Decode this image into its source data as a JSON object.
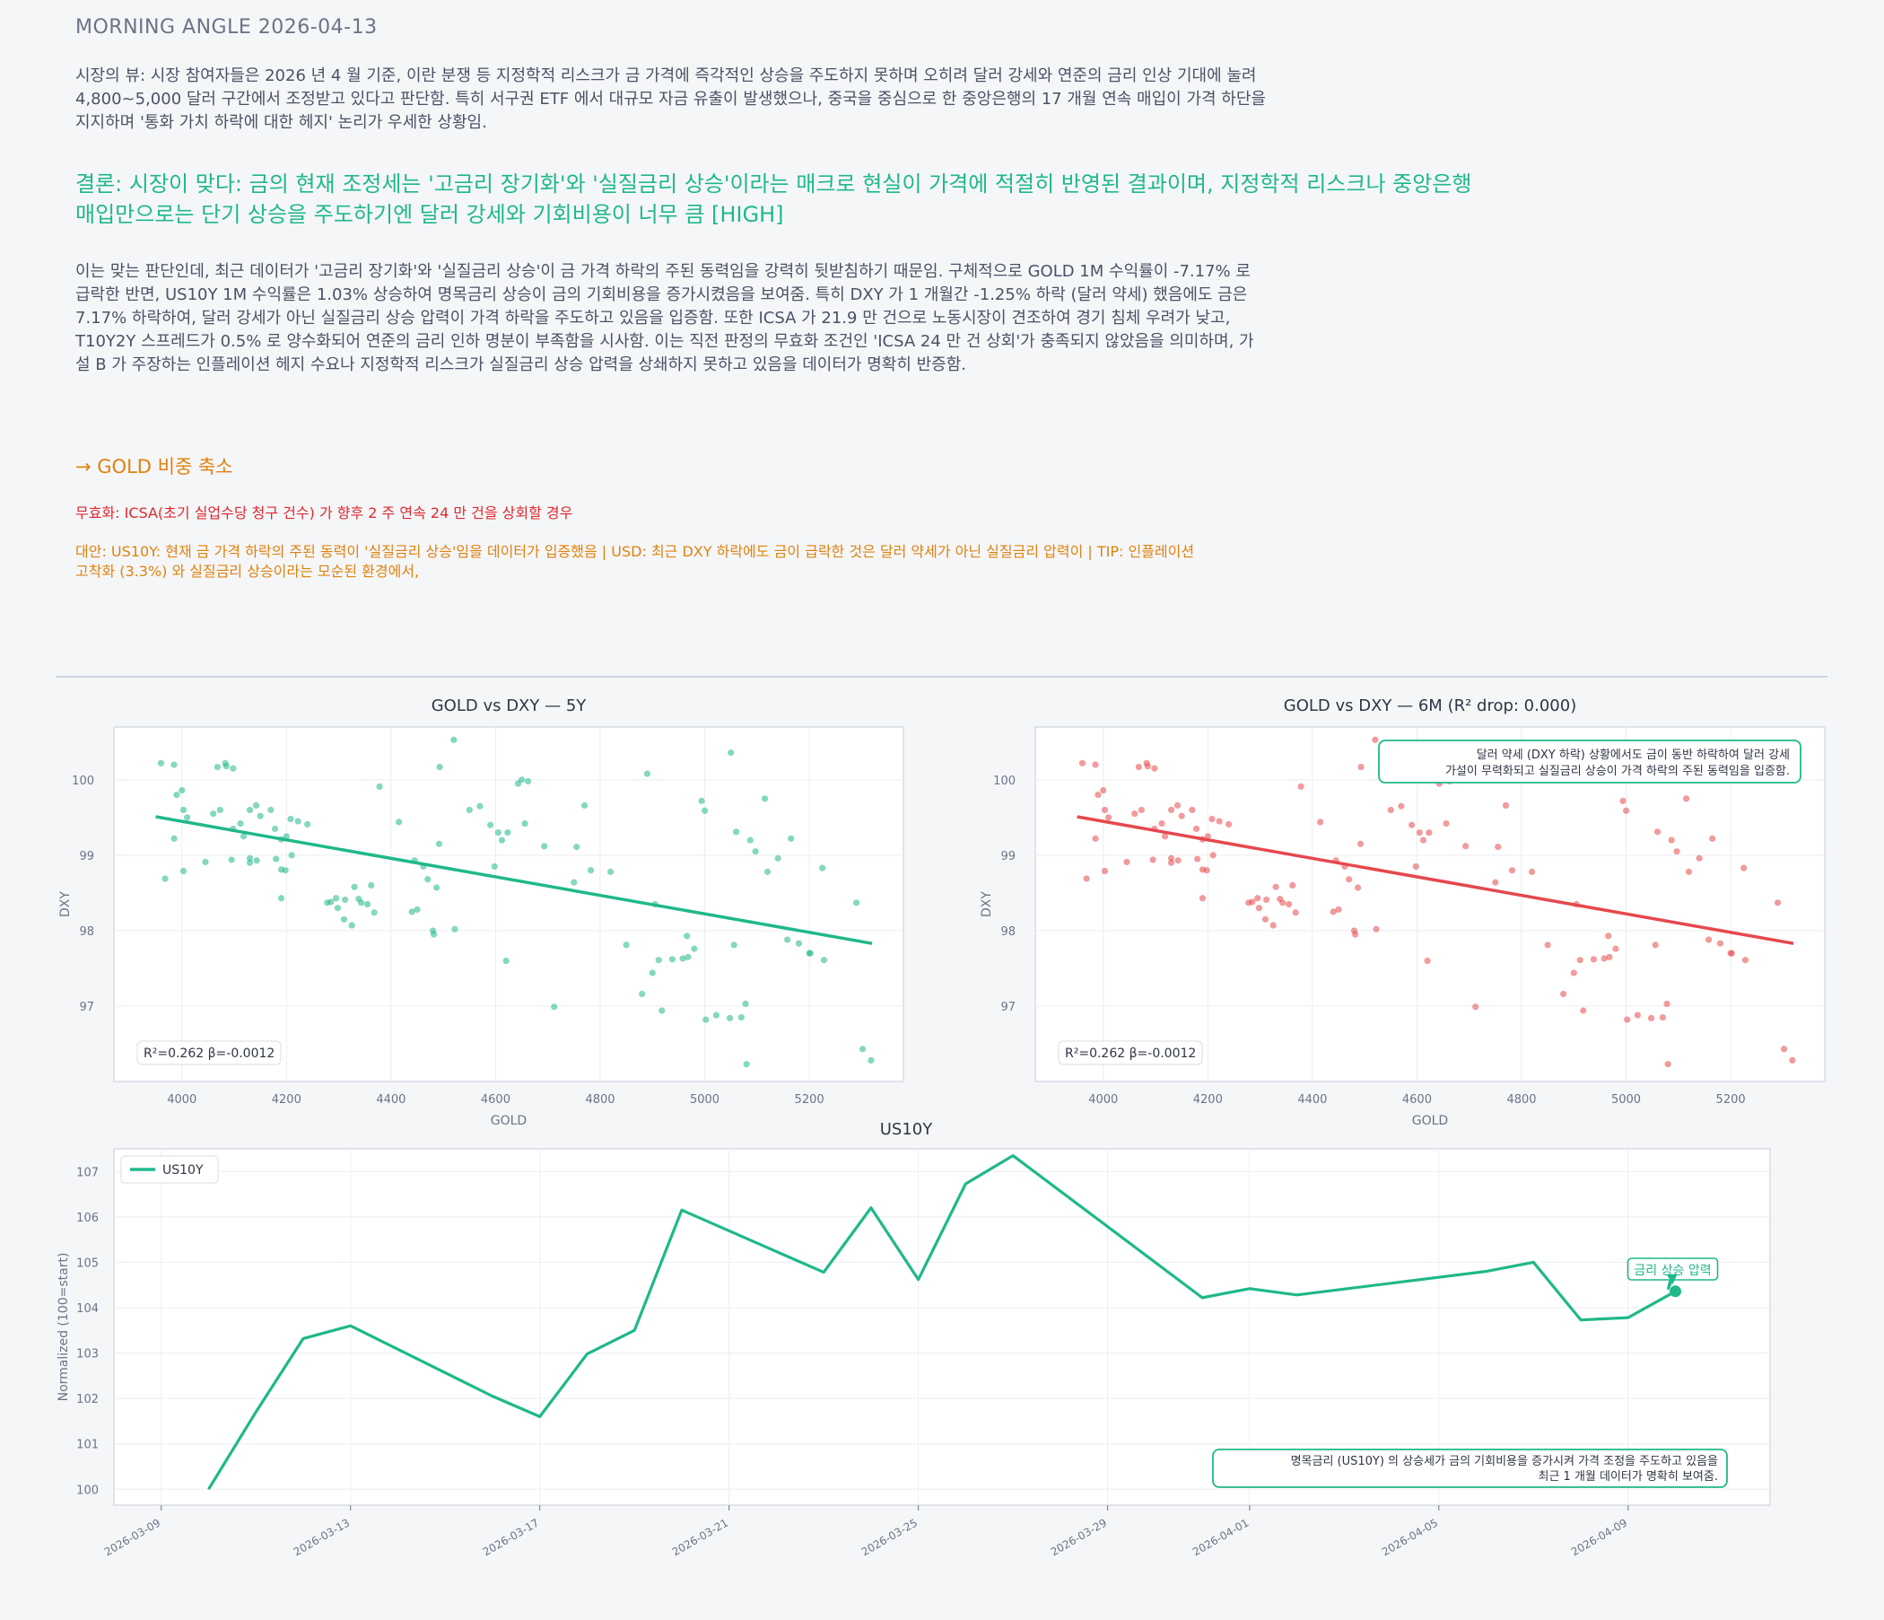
{
  "header": {
    "title": "MORNING ANGLE  2026-04-13"
  },
  "view": {
    "text": "시장의 뷰: 시장 참여자들은 2026 년 4 월 기준, 이란 분쟁 등 지정학적 리스크가 금 가격에 즉각적인 상승을 주도하지 못하며 오히려 달러 강세와 연준의 금리 인상 기대에 눌려 4,800~5,000 달러 구간에서 조정받고 있다고 판단함. 특히 서구권 ETF 에서 대규모 자금 유출이 발생했으나, 중국을 중심으로 한 중앙은행의 17 개월 연속 매입이 가격 하단을 지지하며 '통화 가치 하락에 대한 헤지' 논리가 우세한 상황임."
  },
  "conclusion": {
    "text": "결론: 시장이 맞다: 금의 현재 조정세는 '고금리 장기화'와 '실질금리 상승'이라는 매크로 현실이 가격에 적절히 반영된 결과이며, 지정학적 리스크나 중앙은행 매입만으로는 단기 상승을 주도하기엔 달러 강세와 기회비용이 너무 큼  [HIGH]"
  },
  "body": {
    "text": "이는 맞는 판단인데, 최근 데이터가 '고금리 장기화'와 '실질금리 상승'이 금 가격 하락의 주된 동력임을 강력히 뒷받침하기 때문임. 구체적으로 GOLD 1M 수익률이 -7.17% 로 급락한 반면, US10Y 1M 수익률은 1.03% 상승하여 명목금리 상승이 금의 기회비용을 증가시켰음을 보여줌. 특히 DXY 가 1 개월간 -1.25% 하락 (달러 약세) 했음에도 금은 7.17% 하락하여, 달러 강세가 아닌 실질금리 상승 압력이 가격 하락을 주도하고 있음을 입증함. 또한 ICSA 가 21.9 만 건으로 노동시장이 견조하여 경기 침체 우려가 낮고, T10Y2Y 스프레드가 0.5% 로 양수화되어 연준의 금리 인하 명분이 부족함을 시사함. 이는 직전 판정의 무효화 조건인 'ICSA 24 만 건 상회'가 충족되지 않았음을 의미하며, 가설 B 가 주장하는 인플레이션 헤지 수요나 지정학적 리스크가 실질금리 상승 압력을 상쇄하지 못하고 있음을 데이터가 명확히 반증함."
  },
  "action": {
    "text": "→ GOLD 비중 축소"
  },
  "invalidation": {
    "text": "무효화: ICSA(초기 실업수당 청구 건수) 가 향후 2 주 연속 24 만 건을 상회할 경우"
  },
  "alternatives": {
    "text": "대안: US10Y: 현재 금 가격 하락의 주된 동력이 '실질금리 상승'임을 데이터가 입증했음 | USD: 최근 DXY 하락에도 금이 급락한 것은 달러 약세가 아닌 실질금리 압력이 | TIP: 인플레이션 고착화 (3.3%) 와 실질금리 상승이라는 모순된 환경에서,"
  },
  "colors": {
    "green": "#1fb88a",
    "red": "#e5484d",
    "orange": "#e0820e",
    "text": "#4a5266"
  },
  "chart_data": [
    {
      "type": "scatter",
      "title": "GOLD vs DXY — 5Y",
      "xlabel": "GOLD",
      "ylabel": "DXY",
      "xlim": [
        3870,
        5380
      ],
      "ylim": [
        96.0,
        100.7
      ],
      "xticks": [
        4000,
        4200,
        4400,
        4600,
        4800,
        5000,
        5200
      ],
      "yticks": [
        97,
        98,
        99,
        100
      ],
      "color": "#1fb88a",
      "stats_label": "R²=0.262  β=-0.0012",
      "fit": {
        "x": [
          3950,
          5320
        ],
        "y": [
          99.51,
          97.83
        ]
      },
      "points": [
        [
          3960,
          100.22
        ],
        [
          3985,
          100.2
        ],
        [
          3990,
          99.8
        ],
        [
          4000,
          99.86
        ],
        [
          4003,
          99.6
        ],
        [
          3985,
          99.22
        ],
        [
          4010,
          99.5
        ],
        [
          3968,
          98.69
        ],
        [
          4003,
          98.79
        ],
        [
          4068,
          100.17
        ],
        [
          4083,
          100.22
        ],
        [
          4085,
          100.18
        ],
        [
          4098,
          100.15
        ],
        [
          4060,
          99.55
        ],
        [
          4073,
          99.6
        ],
        [
          4098,
          99.35
        ],
        [
          4112,
          99.42
        ],
        [
          4118,
          99.25
        ],
        [
          4130,
          99.6
        ],
        [
          4142,
          99.66
        ],
        [
          4150,
          99.52
        ],
        [
          4170,
          99.6
        ],
        [
          4178,
          99.35
        ],
        [
          4190,
          99.21
        ],
        [
          4200,
          99.25
        ],
        [
          4208,
          99.48
        ],
        [
          4222,
          99.45
        ],
        [
          4240,
          99.41
        ],
        [
          4180,
          98.95
        ],
        [
          4190,
          98.81
        ],
        [
          4198,
          98.8
        ],
        [
          4210,
          99.0
        ],
        [
          4130,
          98.96
        ],
        [
          4143,
          98.93
        ],
        [
          4130,
          98.9
        ],
        [
          4095,
          98.94
        ],
        [
          4045,
          98.91
        ],
        [
          4190,
          98.43
        ],
        [
          4278,
          98.37
        ],
        [
          4285,
          98.38
        ],
        [
          4295,
          98.43
        ],
        [
          4312,
          98.41
        ],
        [
          4298,
          98.3
        ],
        [
          4330,
          98.58
        ],
        [
          4338,
          98.42
        ],
        [
          4343,
          98.37
        ],
        [
          4355,
          98.35
        ],
        [
          4362,
          98.6
        ],
        [
          4368,
          98.24
        ],
        [
          4310,
          98.15
        ],
        [
          4325,
          98.07
        ],
        [
          4378,
          99.91
        ],
        [
          4415,
          99.44
        ],
        [
          4440,
          98.25
        ],
        [
          4450,
          98.28
        ],
        [
          4445,
          98.93
        ],
        [
          4462,
          98.85
        ],
        [
          4470,
          98.68
        ],
        [
          4480,
          98.0
        ],
        [
          4482,
          97.95
        ],
        [
          4487,
          98.57
        ],
        [
          4492,
          99.15
        ],
        [
          4493,
          100.17
        ],
        [
          4520,
          100.53
        ],
        [
          4522,
          98.02
        ],
        [
          4550,
          99.6
        ],
        [
          4570,
          99.65
        ],
        [
          4590,
          99.4
        ],
        [
          4598,
          98.85
        ],
        [
          4605,
          99.3
        ],
        [
          4612,
          99.2
        ],
        [
          4620,
          97.6
        ],
        [
          4623,
          99.3
        ],
        [
          4643,
          99.95
        ],
        [
          4650,
          100.0
        ],
        [
          4656,
          99.42
        ],
        [
          4662,
          99.98
        ],
        [
          4693,
          99.12
        ],
        [
          4712,
          96.99
        ],
        [
          4750,
          98.64
        ],
        [
          4755,
          99.11
        ],
        [
          4770,
          99.66
        ],
        [
          4782,
          98.8
        ],
        [
          4820,
          98.78
        ],
        [
          4850,
          97.81
        ],
        [
          4880,
          97.16
        ],
        [
          4890,
          100.08
        ],
        [
          4900,
          97.44
        ],
        [
          4905,
          98.35
        ],
        [
          4912,
          97.61
        ],
        [
          4918,
          96.94
        ],
        [
          4938,
          97.62
        ],
        [
          4958,
          97.63
        ],
        [
          4966,
          97.93
        ],
        [
          4968,
          97.65
        ],
        [
          4980,
          97.76
        ],
        [
          4994,
          99.72
        ],
        [
          5000,
          99.59
        ],
        [
          5002,
          96.82
        ],
        [
          5022,
          96.88
        ],
        [
          5050,
          100.36
        ],
        [
          5048,
          96.84
        ],
        [
          5056,
          97.81
        ],
        [
          5060,
          99.31
        ],
        [
          5070,
          96.85
        ],
        [
          5078,
          97.03
        ],
        [
          5080,
          96.23
        ],
        [
          5087,
          99.2
        ],
        [
          5097,
          99.05
        ],
        [
          5115,
          99.75
        ],
        [
          5120,
          98.78
        ],
        [
          5140,
          98.96
        ],
        [
          5158,
          97.88
        ],
        [
          5165,
          99.22
        ],
        [
          5180,
          97.83
        ],
        [
          5200,
          97.7
        ],
        [
          5202,
          97.7
        ],
        [
          5225,
          98.83
        ],
        [
          5228,
          97.61
        ],
        [
          5290,
          98.37
        ],
        [
          5302,
          96.43
        ],
        [
          5318,
          96.28
        ]
      ]
    },
    {
      "type": "scatter",
      "title": "GOLD vs DXY — 6M (R² drop: 0.000)",
      "xlabel": "GOLD",
      "ylabel": "DXY",
      "xlim": [
        3870,
        5380
      ],
      "ylim": [
        96.0,
        100.7
      ],
      "xticks": [
        4000,
        4200,
        4400,
        4600,
        4800,
        5000,
        5200
      ],
      "yticks": [
        97,
        98,
        99,
        100
      ],
      "color": "#e5484d",
      "stats_label": "R²=0.262  β=-0.0012",
      "fit": {
        "x": [
          3950,
          5320
        ],
        "y": [
          99.51,
          97.83
        ]
      },
      "annotation": [
        "달러 약세 (DXY 하락) 상황에서도 금이 동반 하락하여 달러 강세",
        "가설이 무력화되고 실질금리 상승이 가격 하락의 주된 동력임을 입증함."
      ],
      "points": [
        [
          3960,
          100.22
        ],
        [
          3985,
          100.2
        ],
        [
          3990,
          99.8
        ],
        [
          4000,
          99.86
        ],
        [
          4003,
          99.6
        ],
        [
          3985,
          99.22
        ],
        [
          4010,
          99.5
        ],
        [
          3968,
          98.69
        ],
        [
          4003,
          98.79
        ],
        [
          4068,
          100.17
        ],
        [
          4083,
          100.22
        ],
        [
          4085,
          100.18
        ],
        [
          4098,
          100.15
        ],
        [
          4060,
          99.55
        ],
        [
          4073,
          99.6
        ],
        [
          4098,
          99.35
        ],
        [
          4112,
          99.42
        ],
        [
          4118,
          99.25
        ],
        [
          4130,
          99.6
        ],
        [
          4142,
          99.66
        ],
        [
          4150,
          99.52
        ],
        [
          4170,
          99.6
        ],
        [
          4178,
          99.35
        ],
        [
          4190,
          99.21
        ],
        [
          4200,
          99.25
        ],
        [
          4208,
          99.48
        ],
        [
          4222,
          99.45
        ],
        [
          4240,
          99.41
        ],
        [
          4180,
          98.95
        ],
        [
          4190,
          98.81
        ],
        [
          4198,
          98.8
        ],
        [
          4210,
          99.0
        ],
        [
          4130,
          98.96
        ],
        [
          4143,
          98.93
        ],
        [
          4130,
          98.9
        ],
        [
          4095,
          98.94
        ],
        [
          4045,
          98.91
        ],
        [
          4190,
          98.43
        ],
        [
          4278,
          98.37
        ],
        [
          4285,
          98.38
        ],
        [
          4295,
          98.43
        ],
        [
          4312,
          98.41
        ],
        [
          4298,
          98.3
        ],
        [
          4330,
          98.58
        ],
        [
          4338,
          98.42
        ],
        [
          4343,
          98.37
        ],
        [
          4355,
          98.35
        ],
        [
          4362,
          98.6
        ],
        [
          4368,
          98.24
        ],
        [
          4310,
          98.15
        ],
        [
          4325,
          98.07
        ],
        [
          4378,
          99.91
        ],
        [
          4415,
          99.44
        ],
        [
          4440,
          98.25
        ],
        [
          4450,
          98.28
        ],
        [
          4445,
          98.93
        ],
        [
          4462,
          98.85
        ],
        [
          4470,
          98.68
        ],
        [
          4480,
          98.0
        ],
        [
          4482,
          97.95
        ],
        [
          4487,
          98.57
        ],
        [
          4492,
          99.15
        ],
        [
          4493,
          100.17
        ],
        [
          4520,
          100.53
        ],
        [
          4522,
          98.02
        ],
        [
          4550,
          99.6
        ],
        [
          4570,
          99.65
        ],
        [
          4590,
          99.4
        ],
        [
          4598,
          98.85
        ],
        [
          4605,
          99.3
        ],
        [
          4612,
          99.2
        ],
        [
          4620,
          97.6
        ],
        [
          4623,
          99.3
        ],
        [
          4643,
          99.95
        ],
        [
          4650,
          100.0
        ],
        [
          4656,
          99.42
        ],
        [
          4662,
          99.98
        ],
        [
          4693,
          99.12
        ],
        [
          4712,
          96.99
        ],
        [
          4750,
          98.64
        ],
        [
          4755,
          99.11
        ],
        [
          4770,
          99.66
        ],
        [
          4782,
          98.8
        ],
        [
          4820,
          98.78
        ],
        [
          4850,
          97.81
        ],
        [
          4880,
          97.16
        ],
        [
          4890,
          100.08
        ],
        [
          4900,
          97.44
        ],
        [
          4905,
          98.35
        ],
        [
          4912,
          97.61
        ],
        [
          4918,
          96.94
        ],
        [
          4938,
          97.62
        ],
        [
          4958,
          97.63
        ],
        [
          4966,
          97.93
        ],
        [
          4968,
          97.65
        ],
        [
          4980,
          97.76
        ],
        [
          4994,
          99.72
        ],
        [
          5000,
          99.59
        ],
        [
          5002,
          96.82
        ],
        [
          5022,
          96.88
        ],
        [
          5050,
          100.36
        ],
        [
          5048,
          96.84
        ],
        [
          5056,
          97.81
        ],
        [
          5060,
          99.31
        ],
        [
          5070,
          96.85
        ],
        [
          5078,
          97.03
        ],
        [
          5080,
          96.23
        ],
        [
          5087,
          99.2
        ],
        [
          5097,
          99.05
        ],
        [
          5115,
          99.75
        ],
        [
          5120,
          98.78
        ],
        [
          5140,
          98.96
        ],
        [
          5158,
          97.88
        ],
        [
          5165,
          99.22
        ],
        [
          5180,
          97.83
        ],
        [
          5200,
          97.7
        ],
        [
          5202,
          97.7
        ],
        [
          5225,
          98.83
        ],
        [
          5228,
          97.61
        ],
        [
          5290,
          98.37
        ],
        [
          5302,
          96.43
        ],
        [
          5318,
          96.28
        ]
      ]
    },
    {
      "type": "line",
      "title": "US10Y",
      "xlabel": "",
      "ylabel": "Normalized (100=start)",
      "ylim": [
        99.65,
        107.5
      ],
      "yticks": [
        100,
        101,
        102,
        103,
        104,
        105,
        106,
        107
      ],
      "xticks": [
        "2026-03-09",
        "2026-03-13",
        "2026-03-17",
        "2026-03-21",
        "2026-03-25",
        "2026-03-29",
        "2026-04-01",
        "2026-04-05",
        "2026-04-09"
      ],
      "color": "#1fb88a",
      "legend": "US10Y",
      "series": [
        {
          "name": "US10Y",
          "x": [
            "2026-03-10",
            "2026-03-11",
            "2026-03-12",
            "2026-03-13",
            "2026-03-16",
            "2026-03-17",
            "2026-03-18",
            "2026-03-19",
            "2026-03-20",
            "2026-03-23",
            "2026-03-24",
            "2026-03-25",
            "2026-03-26",
            "2026-03-27",
            "2026-03-31",
            "2026-04-01",
            "2026-04-02",
            "2026-04-06",
            "2026-04-07",
            "2026-04-08",
            "2026-04-09",
            "2026-04-10"
          ],
          "values": [
            100.0,
            101.7,
            103.32,
            103.6,
            102.05,
            101.6,
            102.98,
            103.5,
            106.15,
            104.78,
            106.2,
            104.62,
            106.73,
            107.35,
            104.22,
            104.42,
            104.28,
            104.8,
            105.0,
            103.73,
            103.78,
            104.36
          ]
        }
      ],
      "marker_label": "금리 상승 압력",
      "note": [
        "명목금리 (US10Y) 의 상승세가 금의 기회비용을 증가시켜 가격 조정을 주도하고 있음을",
        "최근 1 개월 데이터가 명확히 보여줌."
      ]
    }
  ]
}
